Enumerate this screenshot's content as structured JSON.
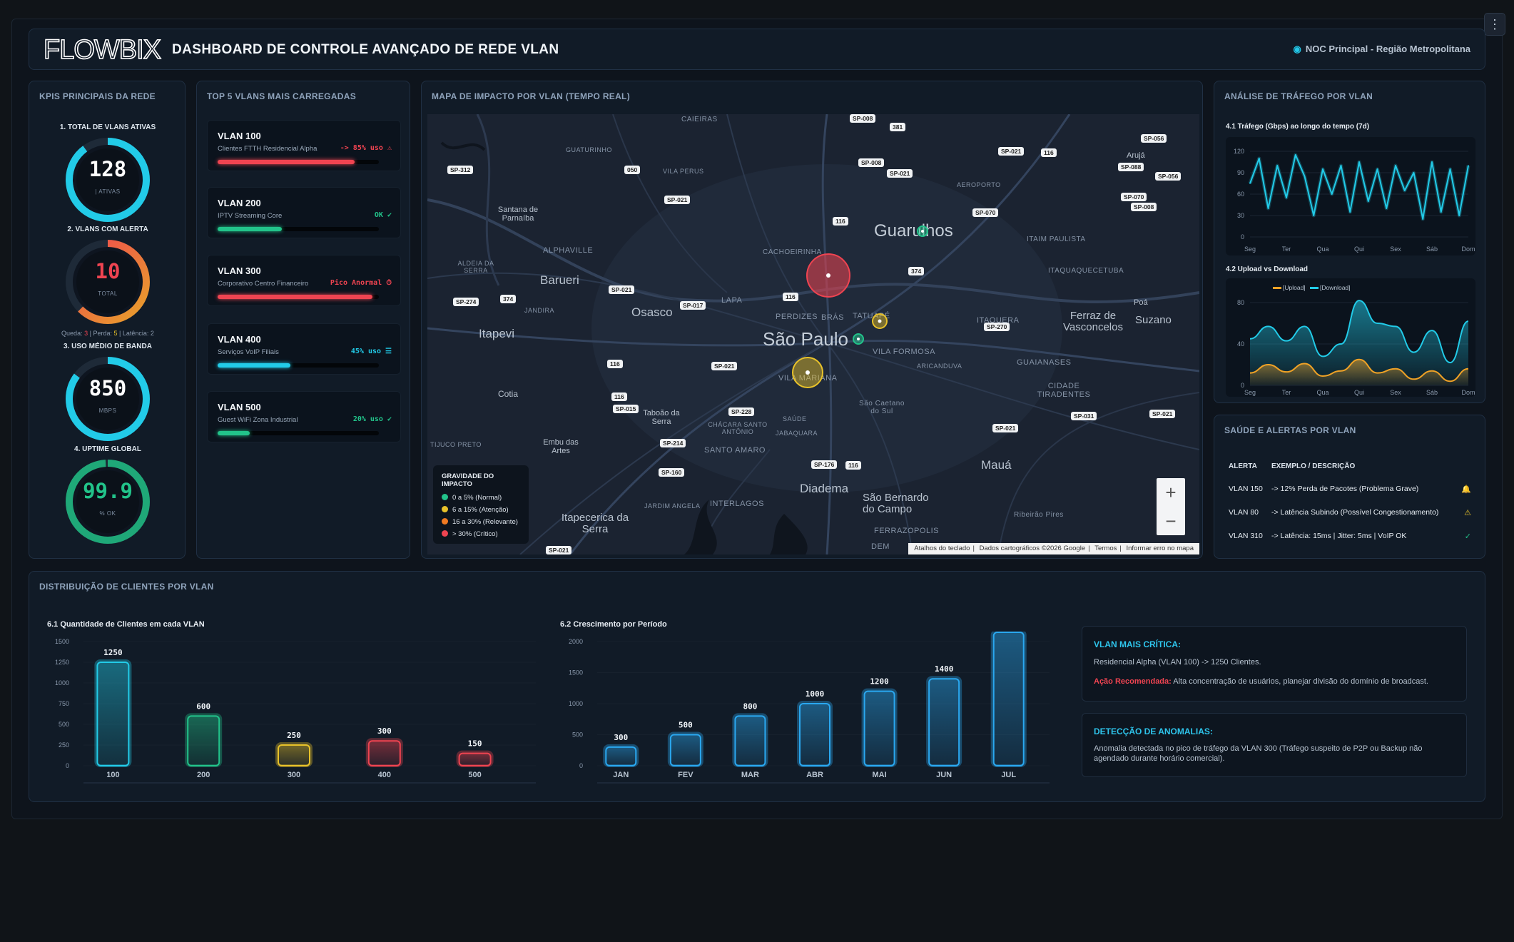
{
  "header": {
    "logo": "FLOWBIX",
    "title": "DASHBOARD DE CONTROLE AVANÇADO DE REDE VLAN",
    "location": "NOC Principal - Região Metropolitana"
  },
  "kpi": {
    "title": "KPIS PRINCIPAIS DA REDE",
    "total": {
      "label": "1. TOTAL DE VLANS ATIVAS",
      "value": "128",
      "sub": "| ATIVAS"
    },
    "alerts": {
      "label": "2. VLANS COM ALERTA",
      "value": "10",
      "sub": "TOTAL",
      "queda_label": "Queda:",
      "queda": "3",
      "perda_label": "| Perda:",
      "perda": "5",
      "latencia_label": "| Latência:",
      "latencia": "2"
    },
    "bandwidth": {
      "label": "3. USO MÉDIO DE BANDA",
      "value": "850",
      "sub": "MBPS"
    },
    "uptime": {
      "label": "4. UPTIME GLOBAL",
      "value": "99.9",
      "sub": "% OK"
    }
  },
  "top5": {
    "title": "TOP 5 VLANS MAIS CARREGADAS",
    "items": [
      {
        "name": "VLAN 100",
        "desc": "Clientes FTTH Residencial Alpha",
        "status": "-> 85% uso ⚠",
        "color": "#ef4451",
        "fill": 0.85
      },
      {
        "name": "VLAN 200",
        "desc": "IPTV Streaming Core",
        "status": "OK ✔",
        "color": "#22c38a",
        "fill": 0.4
      },
      {
        "name": "VLAN 300",
        "desc": "Corporativo Centro Financeiro",
        "status": "Pico Anormal ⏱",
        "color": "#ef4451",
        "fill": 0.96
      },
      {
        "name": "VLAN 400",
        "desc": "Serviços VoIP Filiais",
        "status": "45% uso ☰",
        "color": "#22cbe8",
        "fill": 0.45
      },
      {
        "name": "VLAN 500",
        "desc": "Guest WiFi Zona Industrial",
        "status": "20% uso ✔",
        "color": "#22c38a",
        "fill": 0.2
      }
    ]
  },
  "map": {
    "title": "MAPA DE IMPACTO POR VLAN (TEMPO REAL)",
    "big_labels": [
      "São Paulo",
      "Guarulhos"
    ],
    "cities": [
      "Barueri",
      "Osasco",
      "Itapevi",
      "Cotia",
      "Diadema",
      "São Bernardo do Campo",
      "Mauá",
      "Ferraz de Vasconcelos",
      "Suzano",
      "Itapecerica da Serra",
      "Embu das Artes",
      "Taboão da Serra",
      "Santana de Parnaíba",
      "Poá",
      "Arujá"
    ],
    "districts": [
      "ALPHAVILLE",
      "LAPA",
      "PERDIZES",
      "BRÁS",
      "TATUAPÉ",
      "VILA FORMOSA",
      "VILA MARIANA",
      "ITAQUERA",
      "GUAIANASES",
      "CIDADE TIRADENTES",
      "SANTO AMARO",
      "INTERLAGOS",
      "FERRAZOPOLIS",
      "JARDIM ANGELA",
      "JABAQUARA",
      "CHÁCARA SANTO ANTÔNIO",
      "SAÚDE",
      "ARICANDUVA",
      "ALDEIA DA SERRA",
      "JANDIRA",
      "CACHOEIRINHA",
      "VILA PERUS",
      "GUATURINHO",
      "AEROPORTO",
      "ITAIM PAULISTA",
      "ITAQUAQUECETUBA",
      "TIJUCO PRETO",
      "CAIEIRAS",
      "São Caetano do Sul",
      "Ribeirão Pires",
      "DEM"
    ],
    "shields": [
      "SP-008",
      "381",
      "SP-056",
      "SP-312",
      "050",
      "SP-021",
      "SP-008",
      "SP-021",
      "SP-021",
      "116",
      "SP-088",
      "SP-056",
      "SP-070",
      "SP-008",
      "116",
      "SP-070",
      "374",
      "SP-274",
      "374",
      "SP-021",
      "116",
      "SP-017",
      "SP-270",
      "116",
      "SP-021",
      "116",
      "SP-015",
      "SP-228",
      "SP-214",
      "SP-160",
      "SP-176",
      "116",
      "SP-021",
      "SP-031",
      "SP-021",
      "SP-021"
    ],
    "legend": {
      "title": "GRAVIDADE DO IMPACTO",
      "items": [
        {
          "label": "0 a 5% (Normal)",
          "color": "#22c38a"
        },
        {
          "label": "6 a 15% (Atenção)",
          "color": "#e8c22a"
        },
        {
          "label": "16 a 30% (Relevante)",
          "color": "#f07a22"
        },
        {
          "label": "> 30% (Crítico)",
          "color": "#ef4451"
        }
      ]
    },
    "zoom_in": "+",
    "zoom_out": "−",
    "attribution": [
      "Atalhos do teclado",
      "Dados cartográficos ©2026 Google",
      "Termos",
      "Informar erro no mapa"
    ]
  },
  "traffic": {
    "title": "ANÁLISE DE TRÁFEGO POR VLAN",
    "chart1_title": "4.1 Tráfego (Gbps) ao longo do tempo (7d)",
    "chart2_title": "4.2 Upload vs Download"
  },
  "health": {
    "title": "SAÚDE E ALERTAS POR VLAN",
    "col_alert": "ALERTA",
    "col_desc": "EXEMPLO / DESCRIÇÃO",
    "rows": [
      {
        "alert": "VLAN 150",
        "desc": "-> 12% Perda de Pacotes (Problema Grave)",
        "icon": "🔔",
        "color": "#ef4451"
      },
      {
        "alert": "VLAN 80",
        "desc": "-> Latência Subindo (Possível Congestionamento)",
        "icon": "⚠",
        "color": "#e8c22a"
      },
      {
        "alert": "VLAN 310",
        "desc": "-> Latência: 15ms | Jitter: 5ms | VoIP OK",
        "icon": "✓",
        "color": "#22c38a"
      }
    ]
  },
  "bottom": {
    "title": "DISTRIBUIÇÃO DE CLIENTES POR VLAN",
    "chart1_title": "6.1 Quantidade de Clientes em cada VLAN",
    "chart2_title": "6.2 Crescimento por Período",
    "critical": {
      "title": "VLAN MAIS CRÍTICA:",
      "text": "Residencial Alpha (VLAN 100) -> 1250 Clientes.",
      "action_label": "Ação Recomendada:",
      "action_text": " Alta concentração de usuários, planejar divisão do domínio de broadcast."
    },
    "anomaly": {
      "title": "DETECÇÃO DE ANOMALIAS:",
      "text": "Anomalia detectada no pico de tráfego da VLAN 300 (Tráfego suspeito de P2P ou Backup não agendado durante horário comercial)."
    }
  },
  "chart_data": [
    {
      "type": "line",
      "title": "4.1 Tráfego (Gbps) ao longo do tempo (7d)",
      "categories": [
        "Seg",
        "Ter",
        "Qua",
        "Qui",
        "Sex",
        "Sáb",
        "Dom"
      ],
      "x": [
        0,
        0.25,
        0.5,
        0.75,
        1,
        1.25,
        1.5,
        1.75,
        2,
        2.25,
        2.5,
        2.75,
        3,
        3.25,
        3.5,
        3.75,
        4,
        4.25,
        4.5,
        4.75,
        5,
        5.25,
        5.5,
        5.75,
        6
      ],
      "series": [
        {
          "values": [
            75,
            110,
            40,
            100,
            55,
            115,
            85,
            30,
            95,
            60,
            100,
            35,
            105,
            50,
            95,
            40,
            100,
            65,
            90,
            25,
            105,
            35,
            95,
            30,
            100
          ]
        }
      ],
      "ylim": [
        0,
        120
      ],
      "yticks": [
        0,
        30,
        60,
        90,
        120
      ],
      "color": "#22cbe8"
    },
    {
      "type": "area",
      "title": "4.2 Upload vs Download",
      "categories": [
        "Seg",
        "Ter",
        "Qua",
        "Qui",
        "Sex",
        "Sáb",
        "Dom"
      ],
      "x": [
        0,
        0.5,
        1,
        1.5,
        2,
        2.5,
        3,
        3.5,
        4,
        4.5,
        5,
        5.5,
        6
      ],
      "series": [
        {
          "name": "[Upload]",
          "color": "#f0a226",
          "values": [
            12,
            20,
            13,
            21,
            9,
            14,
            25,
            12,
            16,
            6,
            14,
            4,
            16
          ]
        },
        {
          "name": "[Download]",
          "color": "#22cbe8",
          "values": [
            45,
            57,
            43,
            57,
            28,
            40,
            82,
            60,
            57,
            32,
            53,
            22,
            62
          ]
        }
      ],
      "ylim": [
        0,
        80
      ],
      "yticks": [
        0,
        40,
        80
      ],
      "legend": "top-left"
    },
    {
      "type": "bar",
      "title": "6.1 Quantidade de Clientes em cada VLAN",
      "categories": [
        "100",
        "200",
        "300",
        "400",
        "500"
      ],
      "values": [
        1250,
        600,
        250,
        300,
        150
      ],
      "colors": [
        "#22cbe8",
        "#22c38a",
        "#e8c22a",
        "#ef4451",
        "#ef4451"
      ],
      "ylim": [
        0,
        1500
      ],
      "yticks": [
        0,
        250,
        500,
        750,
        1000,
        1250,
        1500
      ]
    },
    {
      "type": "bar",
      "title": "6.2 Crescimento por Período",
      "categories": [
        "JAN",
        "FEV",
        "MAR",
        "ABR",
        "MAI",
        "JUN",
        "JUL"
      ],
      "values": [
        300,
        500,
        800,
        1000,
        1200,
        1400,
        2150
      ],
      "colors": [
        "#2aa8f0",
        "#2aa8f0",
        "#2aa8f0",
        "#2aa8f0",
        "#2aa8f0",
        "#2aa8f0",
        "#2aa8f0"
      ],
      "ylim": [
        0,
        2000
      ],
      "yticks": [
        0,
        500,
        1000,
        1500,
        2000
      ]
    }
  ]
}
